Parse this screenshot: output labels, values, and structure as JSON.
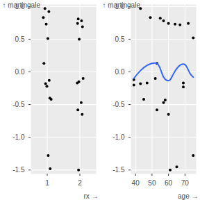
{
  "chart_data": [
    {
      "type": "scatter",
      "x_label": "rx",
      "y_label": "martingale",
      "color": "#000000",
      "grid": true,
      "x": [
        0.93,
        1.05,
        0.88,
        0.97,
        1.02,
        0.9,
        1.06,
        0.95,
        0.99,
        1.08,
        1.12,
        1.03,
        1.09,
        1.95,
        2.05,
        1.93,
        2.08,
        1.98,
        2.1,
        1.97,
        1.92,
        2.04,
        1.94,
        2.07,
        1.96
      ],
      "values": [
        0.97,
        0.92,
        0.83,
        0.73,
        0.51,
        0.13,
        -0.13,
        -0.18,
        -0.22,
        -0.4,
        -0.42,
        -1.28,
        -1.48,
        0.81,
        0.78,
        0.74,
        0.69,
        0.5,
        -0.1,
        -0.15,
        -0.17,
        -0.47,
        -0.58,
        -0.65,
        -1.5
      ],
      "xlim": [
        0.5,
        2.5
      ],
      "xticks": [
        1,
        2
      ],
      "ylim": [
        -1.56,
        1.03
      ],
      "yticks": [
        {
          "value": -1.5,
          "label": "-1.5"
        },
        {
          "value": -1,
          "label": "-1.0"
        },
        {
          "value": -0.5,
          "label": "-0.5"
        },
        {
          "value": 0,
          "label": "0.0"
        },
        {
          "value": 0.5,
          "label": "0.5"
        },
        {
          "value": 1,
          "label": "1.0"
        }
      ]
    },
    {
      "type": "scatter",
      "x_label": "age",
      "y_label": "martingale",
      "color": "#000000",
      "grid": true,
      "x": [
        43,
        39,
        39,
        43,
        45,
        49,
        53,
        52,
        55,
        57,
        58,
        57,
        60,
        60,
        61,
        64,
        65,
        67,
        69,
        69,
        72,
        75,
        75,
        47,
        53
      ],
      "values": [
        0.97,
        -0.12,
        -0.2,
        -0.18,
        -0.42,
        0.83,
        -0.58,
        -0.1,
        0.82,
        0.78,
        -0.43,
        -0.47,
        0.74,
        -0.65,
        -1.5,
        0.73,
        -1.45,
        0.72,
        -0.17,
        -0.23,
        0.74,
        0.52,
        -1.28,
        -0.17,
        0.13
      ],
      "series": [
        {
          "type": "line",
          "color": "#3366FF",
          "x": [
            39,
            43,
            47,
            50,
            53,
            55,
            57,
            59,
            61,
            63,
            66,
            69,
            71,
            73,
            75
          ],
          "values": [
            -0.1,
            0.02,
            0.1,
            0.13,
            0.13,
            0.05,
            -0.08,
            -0.13,
            -0.12,
            -0.03,
            0.08,
            0.12,
            0.08,
            -0.02,
            -0.08
          ]
        }
      ],
      "xlim": [
        37.2,
        76.8
      ],
      "xticks": [
        40,
        50,
        60,
        70
      ],
      "ylim": [
        -1.56,
        1.03
      ],
      "yticks": [
        {
          "value": -1.5,
          "label": "-1.5"
        },
        {
          "value": -1,
          "label": "-1.0"
        },
        {
          "value": -0.5,
          "label": "-0.5"
        },
        {
          "value": 0,
          "label": "0.0"
        },
        {
          "value": 0.5,
          "label": "0.5"
        },
        {
          "value": 1,
          "label": "1.0"
        }
      ]
    }
  ]
}
